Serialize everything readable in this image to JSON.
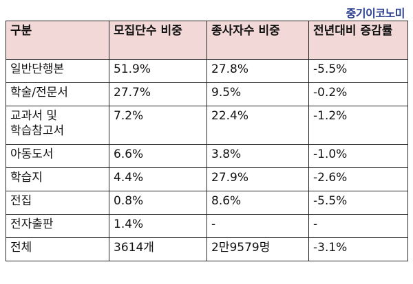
{
  "brand": "중기이코노미",
  "table": {
    "headers": [
      "구분",
      "모집단수 비중",
      "종사자수 비중",
      "전년대비 증감률"
    ],
    "rows": [
      [
        "일반단행본",
        "51.9%",
        "27.8%",
        "-5.5%"
      ],
      [
        "학술/전문서",
        "27.7%",
        "9.5%",
        "-0.2%"
      ],
      [
        "교과서 및 학습참고서",
        "7.2%",
        "22.4%",
        "-1.2%"
      ],
      [
        "아동도서",
        "6.6%",
        "3.8%",
        "-1.0%"
      ],
      [
        "학습지",
        "4.4%",
        "27.9%",
        "-2.6%"
      ],
      [
        "전집",
        "0.8%",
        "8.6%",
        "-5.5%"
      ],
      [
        "전자출판",
        "1.4%",
        "-",
        "-"
      ],
      [
        "전체",
        "3614개",
        "2만9579명",
        "-3.1%"
      ]
    ]
  }
}
